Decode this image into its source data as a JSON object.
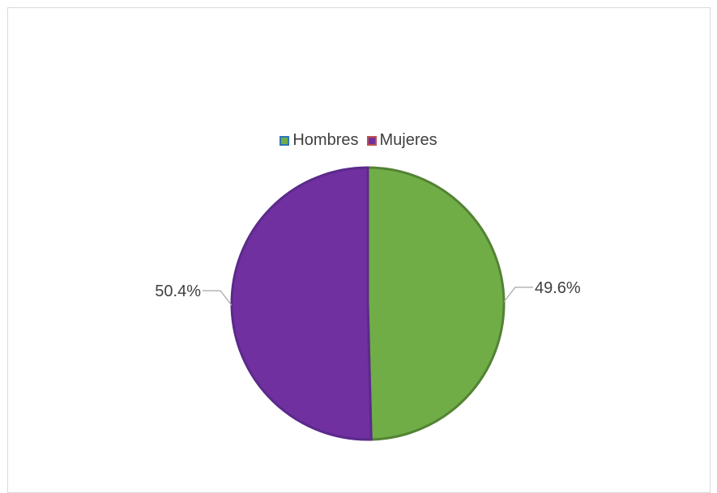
{
  "chart_data": {
    "type": "pie",
    "title": "",
    "categories": [
      "Hombres",
      "Mujeres"
    ],
    "values": [
      49.6,
      50.4
    ],
    "data_labels": [
      "49.6%",
      "50.4%"
    ],
    "colors": [
      "#70AD47",
      "#7030A0"
    ],
    "border_colors": [
      "#548235",
      "#5B2A8A"
    ],
    "legend_placement": "top"
  },
  "legend": {
    "items": [
      {
        "label": "Hombres",
        "color": "#70AD47",
        "border": "#2E75B6"
      },
      {
        "label": "Mujeres",
        "color": "#7030A0",
        "border": "#C0504D"
      }
    ]
  }
}
